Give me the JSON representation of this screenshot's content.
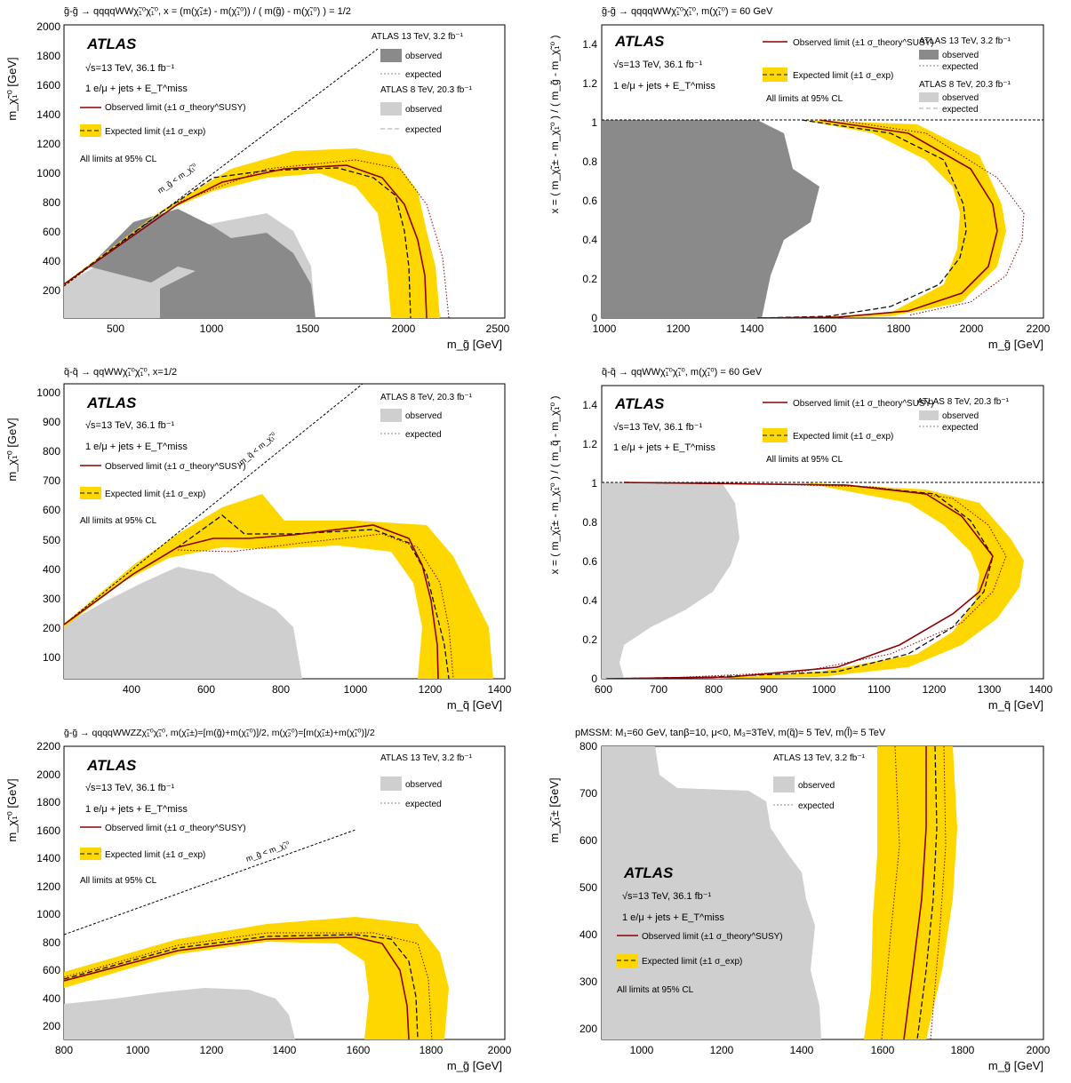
{
  "colors": {
    "band": "#ffd700",
    "observed_line": "#8b0000",
    "expected_line": "#111111",
    "dark_grey": "#8a8a8a",
    "light_grey": "#cfcfcf",
    "expected_grey": "#888888"
  },
  "common": {
    "atlas": "ATLAS",
    "energy": "√s=13 TeV, 36.1 fb⁻¹",
    "selection": "1 e/μ + jets + E_T^miss",
    "obs_legend": "Observed limit (±1 σ_theory^SUSY)",
    "exp_legend": "Expected limit (±1 σ_exp)",
    "cl": "All limits at 95% CL",
    "observed": "observed",
    "expected": "expected",
    "atlas13": "ATLAS 13 TeV, 3.2 fb⁻¹",
    "atlas8": "ATLAS 8 TeV, 20.3 fb⁻¹"
  },
  "chart_data": [
    {
      "type": "area",
      "title": "g̃-g̃ → qqqqWWχ̃₁⁰χ̃₁⁰, x = (m(χ̃₁±) - m(χ̃₁⁰)) / ( m(g̃) - m(χ̃₁⁰) ) = 1/2",
      "xlabel": "m_g̃ [GeV]",
      "ylabel": "m_χ̃₁⁰ [GeV]",
      "xlim": [
        200,
        2500
      ],
      "ylim": [
        0,
        2000
      ],
      "xticks": [
        500,
        1000,
        1500,
        2000,
        2500
      ],
      "yticks": [
        200,
        400,
        600,
        800,
        1000,
        1200,
        1400,
        1600,
        1800,
        2000
      ],
      "diagonal_label": "m_g̃ < m_χ̃₁⁰",
      "observed": [
        [
          230,
          240
        ],
        [
          500,
          560
        ],
        [
          750,
          800
        ],
        [
          1000,
          950
        ],
        [
          1300,
          1020
        ],
        [
          1600,
          1000
        ],
        [
          1800,
          930
        ],
        [
          1950,
          800
        ],
        [
          2050,
          600
        ],
        [
          2100,
          300
        ],
        [
          2100,
          0
        ]
      ],
      "expected": [
        [
          230,
          240
        ],
        [
          500,
          560
        ],
        [
          750,
          820
        ],
        [
          1000,
          950
        ],
        [
          1300,
          1010
        ],
        [
          1600,
          990
        ],
        [
          1800,
          900
        ],
        [
          1920,
          750
        ],
        [
          2000,
          550
        ],
        [
          2040,
          300
        ],
        [
          2050,
          0
        ]
      ],
      "band_upper": [
        [
          230,
          250
        ],
        [
          500,
          580
        ],
        [
          800,
          880
        ],
        [
          1100,
          1030
        ],
        [
          1500,
          1080
        ],
        [
          1800,
          1010
        ],
        [
          1950,
          880
        ],
        [
          2060,
          650
        ],
        [
          2110,
          350
        ],
        [
          2130,
          0
        ]
      ],
      "band_lower": [
        [
          230,
          230
        ],
        [
          500,
          530
        ],
        [
          700,
          720
        ],
        [
          900,
          820
        ],
        [
          1200,
          900
        ],
        [
          1500,
          850
        ],
        [
          1700,
          720
        ],
        [
          1820,
          520
        ],
        [
          1880,
          250
        ],
        [
          1900,
          0
        ]
      ],
      "grey_13tev": [
        [
          380,
          250
        ],
        [
          550,
          450
        ],
        [
          800,
          580
        ],
        [
          1000,
          630
        ],
        [
          1200,
          520
        ],
        [
          1400,
          360
        ],
        [
          1520,
          100
        ],
        [
          1520,
          0
        ]
      ],
      "grey_8tev": [
        [
          230,
          230
        ],
        [
          500,
          480
        ],
        [
          800,
          520
        ],
        [
          1100,
          650
        ],
        [
          1300,
          550
        ],
        [
          1400,
          300
        ],
        [
          1450,
          0
        ]
      ],
      "legend": [
        {
          "group": "ATLAS 13 TeV, 3.2 fb⁻¹",
          "items": [
            "observed",
            "expected"
          ]
        },
        {
          "group": "ATLAS 8 TeV, 20.3 fb⁻¹",
          "items": [
            "observed",
            "expected"
          ]
        }
      ]
    },
    {
      "type": "area",
      "title": "g̃-g̃ → qqqqWWχ̃₁⁰χ̃₁⁰, m(χ̃₁⁰) = 60 GeV",
      "xlabel": "m_g̃ [GeV]",
      "ylabel": "x = ( m_χ̃₁± - m_χ̃₁⁰ ) / ( m_g̃ - m_χ̃₁⁰ )",
      "xlim": [
        1000,
        2200
      ],
      "ylim": [
        0,
        1.5
      ],
      "xticks": [
        1000,
        1200,
        1400,
        1600,
        1800,
        2000,
        2200
      ],
      "yticks": [
        0,
        0.2,
        0.4,
        0.6,
        0.8,
        1,
        1.2,
        1.4
      ],
      "observed": [
        [
          1000,
          1
        ],
        [
          1600,
          0.99
        ],
        [
          1850,
          0.92
        ],
        [
          2000,
          0.8
        ],
        [
          2070,
          0.65
        ],
        [
          2090,
          0.55
        ],
        [
          2080,
          0.4
        ],
        [
          2030,
          0.25
        ],
        [
          1950,
          0.12
        ],
        [
          1800,
          0.04
        ],
        [
          1600,
          0.01
        ],
        [
          1000,
          0.005
        ]
      ],
      "expected": [
        [
          1000,
          1
        ],
        [
          1600,
          0.99
        ],
        [
          1800,
          0.9
        ],
        [
          1930,
          0.78
        ],
        [
          1990,
          0.62
        ],
        [
          2000,
          0.5
        ],
        [
          1990,
          0.38
        ],
        [
          1940,
          0.25
        ],
        [
          1850,
          0.12
        ],
        [
          1700,
          0.04
        ],
        [
          1400,
          0.01
        ],
        [
          1000,
          0.005
        ]
      ]
    },
    {
      "type": "area",
      "title": "q̃-q̃ → qqWWχ̃₁⁰χ̃₁⁰, x=1/2",
      "xlabel": "m_q̃ [GeV]",
      "ylabel": "m_χ̃₁⁰ [GeV]",
      "xlim": [
        220,
        1400
      ],
      "ylim": [
        20,
        1040
      ],
      "xticks": [
        400,
        600,
        800,
        1000,
        1200,
        1400
      ],
      "yticks": [
        100,
        200,
        300,
        400,
        500,
        600,
        700,
        800,
        900,
        1000
      ],
      "diagonal_label": "m_q̃ < m_χ̃₁⁰",
      "observed": [
        [
          220,
          210
        ],
        [
          400,
          400
        ],
        [
          550,
          490
        ],
        [
          650,
          470
        ],
        [
          800,
          500
        ],
        [
          1000,
          530
        ],
        [
          1100,
          540
        ],
        [
          1180,
          450
        ],
        [
          1220,
          300
        ],
        [
          1230,
          150
        ],
        [
          1230,
          20
        ]
      ],
      "expected": [
        [
          220,
          210
        ],
        [
          400,
          400
        ],
        [
          600,
          560
        ],
        [
          700,
          510
        ],
        [
          900,
          520
        ],
        [
          1050,
          520
        ],
        [
          1150,
          470
        ],
        [
          1200,
          380
        ],
        [
          1240,
          250
        ],
        [
          1260,
          100
        ],
        [
          1260,
          20
        ]
      ]
    },
    {
      "type": "area",
      "title": "q̃-q̃ → qqWWχ̃₁⁰χ̃₁⁰, m(χ̃₁⁰) = 60 GeV",
      "xlabel": "m_q̃ [GeV]",
      "ylabel": "x = ( m_χ̃₁± - m_χ̃₁⁰ ) / ( m_q̃ - m_χ̃₁⁰ )",
      "xlim": [
        600,
        1400
      ],
      "ylim": [
        0,
        1.5
      ],
      "xticks": [
        600,
        700,
        800,
        900,
        1000,
        1100,
        1200,
        1300,
        1400
      ],
      "yticks": [
        0,
        0.2,
        0.4,
        0.6,
        0.8,
        1,
        1.2,
        1.4
      ],
      "observed": [
        [
          600,
          1
        ],
        [
          1000,
          0.99
        ],
        [
          1150,
          0.96
        ],
        [
          1230,
          0.85
        ],
        [
          1270,
          0.7
        ],
        [
          1250,
          0.55
        ],
        [
          1180,
          0.38
        ],
        [
          1080,
          0.22
        ],
        [
          980,
          0.08
        ],
        [
          850,
          0.02
        ],
        [
          600,
          0.005
        ]
      ],
      "expected": [
        [
          600,
          1
        ],
        [
          1000,
          0.99
        ],
        [
          1160,
          0.96
        ],
        [
          1240,
          0.85
        ],
        [
          1280,
          0.7
        ],
        [
          1260,
          0.55
        ],
        [
          1210,
          0.4
        ],
        [
          1120,
          0.22
        ],
        [
          1020,
          0.1
        ],
        [
          900,
          0.02
        ],
        [
          600,
          0.005
        ]
      ]
    },
    {
      "type": "area",
      "title": "g̃-g̃ → qqqqWWZZχ̃₁⁰χ̃₁⁰, m(χ̃₁±)=[m(g̃)+m(χ̃₁⁰)]/2, m(χ̃₂⁰)=[m(χ̃₁±)+m(χ̃₁⁰)]/2",
      "xlabel": "m_g̃ [GeV]",
      "ylabel": "m_χ̃₁⁰ [GeV]",
      "xlim": [
        800,
        2000
      ],
      "ylim": [
        100,
        2200
      ],
      "xticks": [
        800,
        1000,
        1200,
        1400,
        1600,
        1800,
        2000
      ],
      "yticks": [
        200,
        400,
        600,
        800,
        1000,
        1200,
        1400,
        1600,
        1800,
        2000,
        2200
      ],
      "diagonal_label": "m_g̃ < m_χ̃₁⁰",
      "observed": [
        [
          800,
          500
        ],
        [
          1000,
          640
        ],
        [
          1200,
          760
        ],
        [
          1400,
          800
        ],
        [
          1600,
          780
        ],
        [
          1680,
          680
        ],
        [
          1730,
          500
        ],
        [
          1740,
          300
        ],
        [
          1740,
          100
        ]
      ],
      "expected": [
        [
          800,
          510
        ],
        [
          1000,
          660
        ],
        [
          1200,
          780
        ],
        [
          1400,
          820
        ],
        [
          1600,
          800
        ],
        [
          1690,
          700
        ],
        [
          1740,
          520
        ],
        [
          1750,
          300
        ],
        [
          1750,
          100
        ]
      ]
    },
    {
      "type": "area",
      "title": "pMSSM: M₁=60 GeV, tanβ=10, μ<0, M₃=3TeV, m(q̃)≈ 5 TeV, m(l̃)≈ 5 TeV",
      "xlabel": "m_g̃ [GeV]",
      "ylabel": "m_χ̃₁± [GeV]",
      "xlim": [
        900,
        2000
      ],
      "ylim": [
        170,
        800
      ],
      "xticks": [
        1000,
        1200,
        1400,
        1600,
        1800,
        2000
      ],
      "yticks": [
        200,
        300,
        400,
        500,
        600,
        700,
        800
      ],
      "observed": [
        [
          1700,
          800
        ],
        [
          1700,
          600
        ],
        [
          1690,
          400
        ],
        [
          1660,
          250
        ],
        [
          1650,
          170
        ]
      ],
      "expected": [
        [
          1730,
          800
        ],
        [
          1725,
          600
        ],
        [
          1710,
          400
        ],
        [
          1690,
          250
        ],
        [
          1680,
          170
        ]
      ]
    }
  ]
}
